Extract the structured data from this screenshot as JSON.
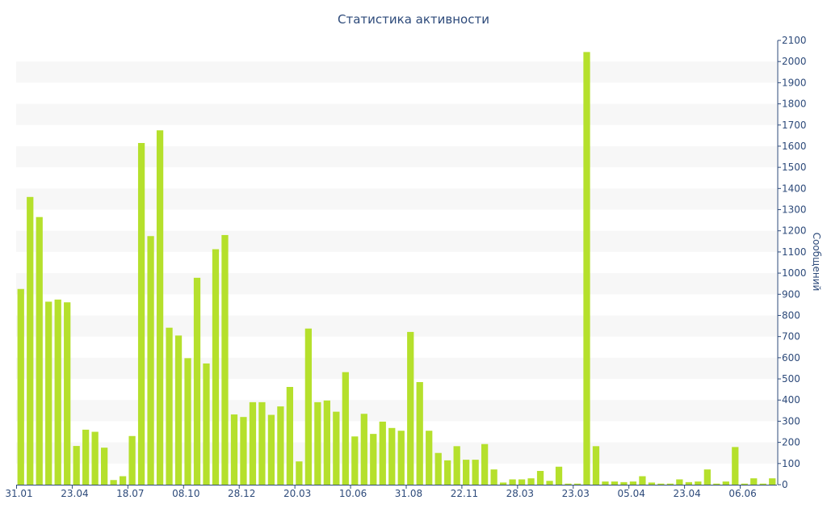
{
  "chart_data": {
    "type": "bar",
    "title": "Статистика активности",
    "ylabel": "Сообщений",
    "ylim": [
      0,
      2100
    ],
    "yticks": [
      0,
      100,
      200,
      300,
      400,
      500,
      600,
      700,
      800,
      900,
      1000,
      1100,
      1200,
      1300,
      1400,
      1500,
      1600,
      1700,
      1800,
      1900,
      2000,
      2100
    ],
    "y_axis_side": "right",
    "grid": "alternating horizontal bands",
    "bar_color": "#b5e02c",
    "band_color": "#f7f7f7",
    "axis_color": "#2d4a7a",
    "x_tick_labels": [
      {
        "label": "31.01",
        "index": 0
      },
      {
        "label": "23.04",
        "index": 6
      },
      {
        "label": "18.07",
        "index": 12
      },
      {
        "label": "08.10",
        "index": 18
      },
      {
        "label": "28.12",
        "index": 24
      },
      {
        "label": "20.03",
        "index": 30
      },
      {
        "label": "10.06",
        "index": 36
      },
      {
        "label": "31.08",
        "index": 42
      },
      {
        "label": "22.11",
        "index": 48
      },
      {
        "label": "28.03",
        "index": 54
      },
      {
        "label": "23.03",
        "index": 60
      },
      {
        "label": "05.04",
        "index": 66
      },
      {
        "label": "23.04",
        "index": 72
      },
      {
        "label": "06.06",
        "index": 78
      }
    ],
    "values": [
      925,
      1360,
      1265,
      865,
      875,
      862,
      183,
      260,
      250,
      175,
      22,
      40,
      230,
      1615,
      1175,
      1675,
      742,
      705,
      598,
      978,
      573,
      1113,
      1180,
      332,
      320,
      390,
      390,
      330,
      370,
      462,
      110,
      738,
      390,
      398,
      345,
      532,
      228,
      335,
      240,
      298,
      268,
      255,
      722,
      485,
      255,
      150,
      115,
      182,
      118,
      118,
      192,
      72,
      10,
      25,
      25,
      30,
      65,
      18,
      85,
      5,
      5,
      2045,
      182,
      15,
      15,
      12,
      15,
      40,
      10,
      5,
      5,
      25,
      12,
      15,
      72,
      5,
      15,
      178,
      5,
      30,
      5,
      30
    ]
  }
}
